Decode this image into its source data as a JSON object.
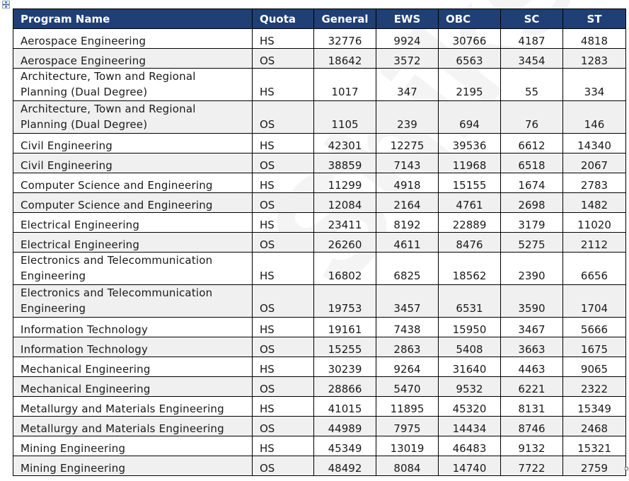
{
  "headers": {
    "program": "Program Name",
    "quota": "Quota",
    "general": "General",
    "ews": "EWS",
    "obc": "OBC",
    "sc": "SC",
    "st": "ST"
  },
  "rows": [
    {
      "program": "Aerospace Engineering",
      "quota": "HS",
      "general": "32776",
      "ews": "9924",
      "obc": "30766",
      "sc": "4187",
      "st": "4818"
    },
    {
      "program": "Aerospace Engineering",
      "quota": "OS",
      "general": "18642",
      "ews": "3572",
      "obc": "6563",
      "sc": "3454",
      "st": "1283"
    },
    {
      "program": "Architecture, Town and Regional Planning (Dual Degree)",
      "quota": "HS",
      "general": "1017",
      "ews": "347",
      "obc": "2195",
      "sc": "55",
      "st": "334"
    },
    {
      "program": "Architecture, Town and Regional Planning (Dual Degree)",
      "quota": "OS",
      "general": "1105",
      "ews": "239",
      "obc": "694",
      "sc": "76",
      "st": "146"
    },
    {
      "program": "Civil Engineering",
      "quota": "HS",
      "general": "42301",
      "ews": "12275",
      "obc": "39536",
      "sc": "6612",
      "st": "14340"
    },
    {
      "program": "Civil Engineering",
      "quota": "OS",
      "general": "38859",
      "ews": "7143",
      "obc": "11968",
      "sc": "6518",
      "st": "2067"
    },
    {
      "program": "Computer Science and Engineering",
      "quota": "HS",
      "general": "11299",
      "ews": "4918",
      "obc": "15155",
      "sc": "1674",
      "st": "2783"
    },
    {
      "program": "Computer Science and Engineering",
      "quota": "OS",
      "general": "12084",
      "ews": "2164",
      "obc": "4761",
      "sc": "2698",
      "st": "1482"
    },
    {
      "program": "Electrical Engineering",
      "quota": "HS",
      "general": "23411",
      "ews": "8192",
      "obc": "22889",
      "sc": "3179",
      "st": "11020"
    },
    {
      "program": "Electrical Engineering",
      "quota": "OS",
      "general": "26260",
      "ews": "4611",
      "obc": "8476",
      "sc": "5275",
      "st": "2112"
    },
    {
      "program": "Electronics and Telecommunication Engineering",
      "quota": "HS",
      "general": "16802",
      "ews": "6825",
      "obc": "18562",
      "sc": "2390",
      "st": "6656"
    },
    {
      "program": "Electronics and Telecommunication Engineering",
      "quota": "OS",
      "general": "19753",
      "ews": "3457",
      "obc": "6531",
      "sc": "3590",
      "st": "1704"
    },
    {
      "program": "Information Technology",
      "quota": "HS",
      "general": "19161",
      "ews": "7438",
      "obc": "15950",
      "sc": "3467",
      "st": "5666"
    },
    {
      "program": "Information Technology",
      "quota": "OS",
      "general": "15255",
      "ews": "2863",
      "obc": "5408",
      "sc": "3663",
      "st": "1675"
    },
    {
      "program": "Mechanical Engineering",
      "quota": "HS",
      "general": "30239",
      "ews": "9264",
      "obc": "31640",
      "sc": "4463",
      "st": "9065"
    },
    {
      "program": "Mechanical Engineering",
      "quota": "OS",
      "general": "28866",
      "ews": "5470",
      "obc": "9532",
      "sc": "6221",
      "st": "2322"
    },
    {
      "program": "Metallurgy and Materials Engineering",
      "quota": "HS",
      "general": "41015",
      "ews": "11895",
      "obc": "45320",
      "sc": "8131",
      "st": "15349"
    },
    {
      "program": "Metallurgy and Materials Engineering",
      "quota": "OS",
      "general": "44989",
      "ews": "7975",
      "obc": "14434",
      "sc": "8746",
      "st": "2468"
    },
    {
      "program": "Mining Engineering",
      "quota": "HS",
      "general": "45349",
      "ews": "13019",
      "obc": "46483",
      "sc": "9132",
      "st": "15321"
    },
    {
      "program": "Mining Engineering",
      "quota": "OS",
      "general": "48492",
      "ews": "8084",
      "obc": "14740",
      "sc": "7722",
      "st": "2759"
    }
  ],
  "colors": {
    "header_bg": "#1f3f75",
    "alt_row_bg": "#f0f0f0"
  },
  "icons": {
    "move_handle": "move-arrows-icon",
    "resize_handle": "resize-handle-icon"
  }
}
